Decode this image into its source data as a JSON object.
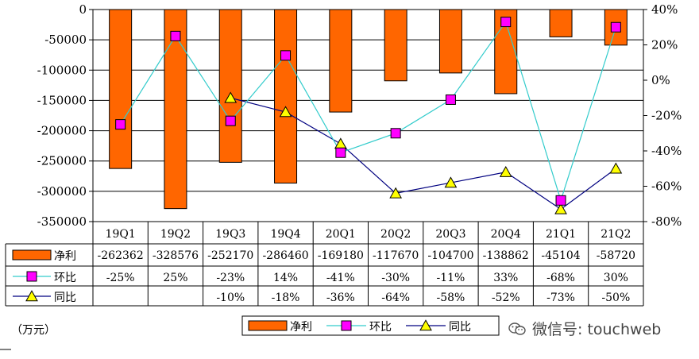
{
  "chart_data": {
    "type": "bar",
    "unit_label": "（万元）",
    "categories": [
      "19Q1",
      "19Q2",
      "19Q3",
      "19Q4",
      "20Q1",
      "20Q2",
      "20Q3",
      "20Q4",
      "21Q1",
      "21Q2"
    ],
    "left_axis": {
      "min": -350000,
      "max": 0,
      "step": 50000,
      "ticks": [
        "0",
        "-50000",
        "-100000",
        "-150000",
        "-200000",
        "-250000",
        "-300000",
        "-350000"
      ]
    },
    "right_axis": {
      "min": -80,
      "max": 40,
      "step": 20,
      "ticks": [
        "40%",
        "20%",
        "0%",
        "-20%",
        "-40%",
        "-60%",
        "-80%"
      ]
    },
    "grid": true,
    "legend_position": "bottom",
    "series": [
      {
        "name": "净利",
        "kind": "bar",
        "axis": "left",
        "color": "#FF6600",
        "values": [
          -262362,
          -328576,
          -252170,
          -286460,
          -169180,
          -117670,
          -104700,
          -138862,
          -45104,
          -58720
        ],
        "table_labels": [
          "-262362",
          "-328576",
          "-252170",
          "-286460",
          "-169180",
          "-117670",
          "-104700",
          "-138862",
          "-45104",
          "-58720"
        ]
      },
      {
        "name": "环比",
        "kind": "line",
        "axis": "right",
        "color": "#33CCCC",
        "marker": "square",
        "marker_color": "#FF00FF",
        "values": [
          -25,
          25,
          -23,
          14,
          -41,
          -30,
          -11,
          33,
          -68,
          30
        ],
        "table_labels": [
          "-25%",
          "25%",
          "-23%",
          "14%",
          "-41%",
          "-30%",
          "-11%",
          "33%",
          "-68%",
          "30%"
        ]
      },
      {
        "name": "同比",
        "kind": "line",
        "axis": "right",
        "color": "#000080",
        "marker": "triangle",
        "marker_color": "#FFFF00",
        "values": [
          null,
          null,
          -10,
          -18,
          -36,
          -64,
          -58,
          -52,
          -73,
          -50
        ],
        "table_labels": [
          "",
          "",
          "-10%",
          "-18%",
          "-36%",
          "-64%",
          "-58%",
          "-52%",
          "-73%",
          "-50%"
        ]
      }
    ]
  },
  "watermark": "微信号: touchweb"
}
